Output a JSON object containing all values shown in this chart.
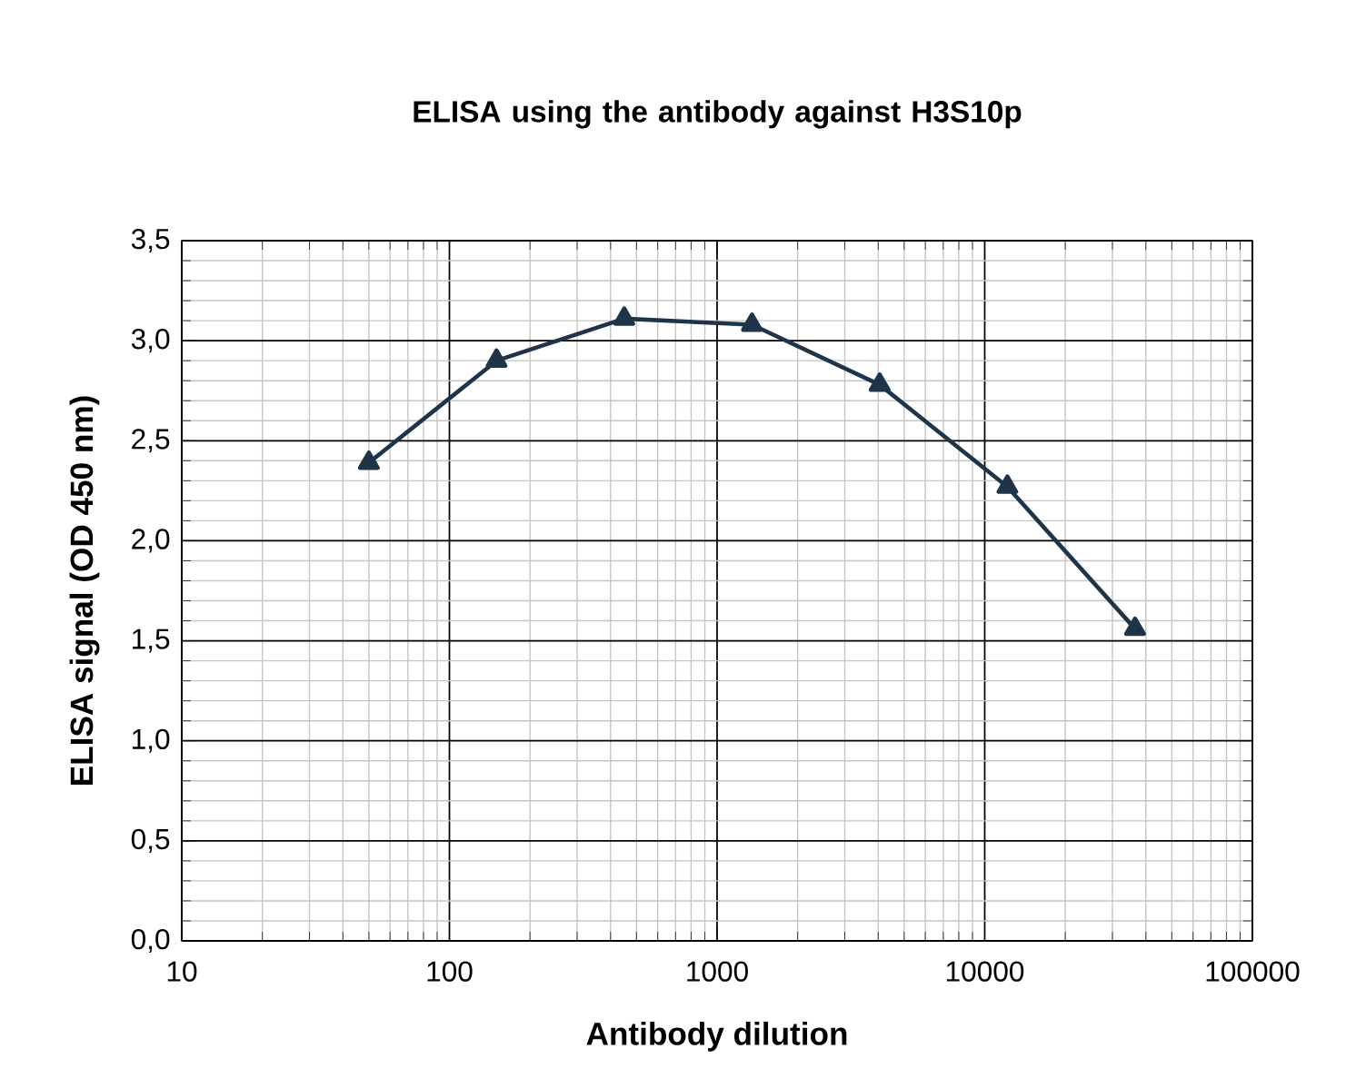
{
  "chart_data": {
    "type": "line",
    "title": "ELISA using the antibody against H3S10p",
    "xlabel": "Antibody dilution",
    "ylabel": "ELISA signal (OD 450 nm)",
    "x": [
      50,
      150,
      450,
      1350,
      4050,
      12150,
      36450
    ],
    "values": [
      2.39,
      2.9,
      3.11,
      3.08,
      2.78,
      2.27,
      1.56
    ],
    "color": "#1f3349",
    "marker": "triangle",
    "line_style": "solid",
    "log": "x",
    "grid": true,
    "xlim": [
      10,
      100000
    ],
    "xticks": [
      10,
      100,
      1000,
      10000,
      100000
    ],
    "ylim": [
      0,
      3.5
    ],
    "yticks": [
      {
        "value": 0,
        "label": "0,0"
      },
      {
        "value": 0.5,
        "label": "0,5"
      },
      {
        "value": 1,
        "label": "1,0"
      },
      {
        "value": 1.5,
        "label": "1,5"
      },
      {
        "value": 2,
        "label": "2,0"
      },
      {
        "value": 2.5,
        "label": "2,5"
      },
      {
        "value": 3,
        "label": "3,0"
      },
      {
        "value": 3.5,
        "label": "3,5"
      }
    ]
  }
}
